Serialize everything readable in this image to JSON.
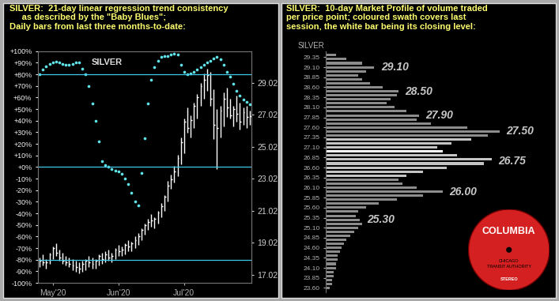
{
  "chart_data": [
    {
      "type": "combo",
      "title": "SILVER:  21-day linear regression trend consistency\n     as described by the \"Baby Blues\";\nDaily bars from last three months-to-date:",
      "annotation": "SILVER",
      "categories": [
        null,
        null,
        null,
        null,
        "May'20",
        null,
        null,
        null,
        null,
        null,
        null,
        null,
        null,
        null,
        null,
        null,
        null,
        null,
        null,
        null,
        null,
        null,
        null,
        null,
        "Jun'20",
        null,
        null,
        null,
        null,
        null,
        null,
        null,
        null,
        null,
        null,
        null,
        null,
        null,
        null,
        null,
        null,
        null,
        null,
        null,
        "Jul'20",
        null,
        null,
        null,
        null,
        null,
        null,
        null,
        null,
        null,
        null,
        null,
        null,
        null,
        null,
        null,
        null,
        null,
        null,
        null,
        null
      ],
      "ylim": [
        -100,
        100
      ],
      "yticks": [
        {
          "value": 100,
          "label": "+100%"
        },
        {
          "value": 90,
          "label": "+90%"
        },
        {
          "value": 80,
          "label": "+80%"
        },
        {
          "value": 70,
          "label": "+70%"
        },
        {
          "value": 60,
          "label": "+60%"
        },
        {
          "value": 50,
          "label": "+50%"
        },
        {
          "value": 40,
          "label": "+40%"
        },
        {
          "value": 30,
          "label": "+30%"
        },
        {
          "value": 20,
          "label": "+20%"
        },
        {
          "value": 10,
          "label": "+10%"
        },
        {
          "value": 0,
          "label": "+0%"
        },
        {
          "value": -10,
          "label": "-10%"
        },
        {
          "value": -20,
          "label": "-20%"
        },
        {
          "value": -30,
          "label": "-30%"
        },
        {
          "value": -40,
          "label": "-40%"
        },
        {
          "value": -50,
          "label": "-50%"
        },
        {
          "value": -60,
          "label": "-60%"
        },
        {
          "value": -70,
          "label": "-70%"
        },
        {
          "value": -80,
          "label": "-80%"
        },
        {
          "value": -90,
          "label": "-90%"
        },
        {
          "value": -100,
          "label": "-100%"
        }
      ],
      "y2lim": [
        16.5,
        31.0
      ],
      "y2ticks": [
        17.02,
        19.02,
        21.02,
        23.02,
        25.02,
        27.02,
        29.02
      ],
      "reference_lines": [
        80,
        0,
        -80
      ],
      "grid": false,
      "series": [
        {
          "type": "scatter",
          "color": "#5fe3e8",
          "values": [
            80,
            84,
            87,
            89,
            90,
            91,
            90,
            89,
            88,
            88,
            89,
            90,
            90,
            85,
            80,
            70,
            55,
            40,
            22,
            5,
            2,
            0,
            -2,
            -3,
            -4,
            -6,
            -10,
            -15,
            -22,
            -30,
            -33,
            -5,
            25,
            55,
            75,
            86,
            92,
            95,
            96,
            96,
            97,
            98,
            97,
            88,
            82,
            80,
            81,
            82,
            84,
            86,
            88,
            90,
            92,
            94,
            95,
            93,
            88,
            82,
            78,
            72,
            66,
            62,
            58,
            56,
            54
          ]
        },
        {
          "type": "ohlc",
          "axis": "y2",
          "color": "#ffffff",
          "high": [
            18.1,
            18.3,
            18.0,
            18.4,
            18.8,
            19.0,
            18.6,
            18.4,
            18.2,
            18.1,
            18.0,
            17.9,
            17.8,
            17.9,
            18.0,
            18.2,
            18.1,
            18.0,
            18.3,
            18.4,
            18.5,
            18.6,
            18.4,
            18.7,
            18.9,
            18.8,
            19.0,
            19.2,
            19.1,
            19.4,
            19.6,
            19.9,
            20.2,
            20.5,
            20.8,
            20.6,
            21.0,
            21.5,
            22.0,
            22.9,
            23.3,
            23.8,
            24.5,
            25.6,
            26.8,
            27.5,
            27.0,
            27.8,
            28.3,
            29.0,
            29.6,
            29.9,
            29.7,
            28.6,
            27.4,
            27.6,
            28.4,
            28.7,
            28.0,
            27.6,
            28.2,
            27.8,
            27.5,
            27.6,
            27.3
          ],
          "low": [
            17.5,
            17.6,
            17.4,
            17.7,
            18.0,
            18.2,
            17.9,
            17.7,
            17.6,
            17.5,
            17.3,
            17.2,
            17.1,
            17.2,
            17.3,
            17.5,
            17.4,
            17.4,
            17.6,
            17.7,
            17.8,
            17.9,
            17.8,
            18.0,
            18.2,
            18.2,
            18.3,
            18.5,
            18.5,
            18.7,
            18.9,
            19.2,
            19.5,
            19.8,
            20.0,
            19.9,
            20.2,
            20.6,
            21.0,
            21.6,
            22.4,
            22.8,
            23.2,
            23.9,
            24.6,
            25.9,
            25.6,
            26.2,
            26.8,
            27.6,
            28.0,
            28.5,
            27.6,
            25.5,
            23.6,
            25.6,
            26.3,
            26.9,
            26.8,
            26.3,
            26.6,
            26.1,
            26.4,
            26.2,
            26.4
          ],
          "close": [
            17.9,
            17.8,
            17.8,
            18.3,
            18.7,
            18.4,
            18.1,
            17.9,
            17.8,
            17.7,
            17.6,
            17.5,
            17.4,
            17.7,
            17.9,
            17.8,
            17.7,
            17.9,
            18.2,
            18.0,
            18.3,
            18.1,
            18.2,
            18.6,
            18.5,
            18.6,
            18.9,
            18.8,
            19.0,
            19.2,
            19.4,
            19.8,
            20.1,
            20.3,
            20.4,
            20.5,
            20.9,
            21.3,
            21.9,
            22.6,
            23.0,
            23.5,
            24.3,
            25.3,
            26.6,
            26.2,
            26.7,
            27.6,
            28.1,
            28.8,
            29.2,
            29.5,
            28.0,
            26.4,
            26.2,
            27.3,
            28.0,
            27.5,
            27.0,
            27.4,
            27.1,
            26.6,
            27.2,
            26.9,
            26.95
          ]
        }
      ]
    },
    {
      "type": "bar",
      "orientation": "horizontal",
      "title": "SILVER:  10-day Market Profile of volume traded\nper price point; coloured swath covers last\nsession, the white bar being its closing level:",
      "ylabel": "SILVER",
      "tick_labels": "y",
      "color": "#8c8c8c",
      "y": [
        23.6,
        23.7,
        23.8,
        23.9,
        24.0,
        24.1,
        24.2,
        24.3,
        24.4,
        24.5,
        24.6,
        24.7,
        24.8,
        24.9,
        25.0,
        25.1,
        25.2,
        25.3,
        25.4,
        25.5,
        25.6,
        25.7,
        25.8,
        25.9,
        26.0,
        26.1,
        26.2,
        26.3,
        26.4,
        26.5,
        26.6,
        26.7,
        26.8,
        26.9,
        27.0,
        27.1,
        27.2,
        27.3,
        27.4,
        27.5,
        27.6,
        27.7,
        27.8,
        27.9,
        28.0,
        28.1,
        28.2,
        28.3,
        28.4,
        28.5,
        28.6,
        28.7,
        28.8,
        28.9,
        29.0,
        29.1,
        29.2,
        29.3,
        29.4
      ],
      "values": [
        2,
        3,
        3,
        4,
        4,
        5,
        5,
        6,
        6,
        7,
        8,
        9,
        10,
        12,
        14,
        16,
        18,
        17,
        15,
        16,
        20,
        26,
        35,
        48,
        58,
        45,
        38,
        36,
        40,
        48,
        60,
        78,
        82,
        65,
        58,
        55,
        62,
        72,
        80,
        86,
        70,
        52,
        45,
        46,
        40,
        34,
        30,
        32,
        35,
        36,
        28,
        22,
        18,
        16,
        20,
        24,
        18,
        10,
        5
      ],
      "last_session": {
        "low": 26.4,
        "high": 27.3,
        "close": 27.0,
        "color": "#c4c4c4"
      },
      "ylim": [
        23.5,
        29.5
      ],
      "yticks": [
        {
          "value": 23.6,
          "label": "23.60"
        },
        {
          "value": 23.85,
          "label": "23.85"
        },
        {
          "value": 24.1,
          "label": "24.10"
        },
        {
          "value": 24.35,
          "label": "24.35"
        },
        {
          "value": 24.6,
          "label": "24.60"
        },
        {
          "value": 24.85,
          "label": "24.85"
        },
        {
          "value": 25.1,
          "label": "25.10"
        },
        {
          "value": 25.35,
          "label": "25.35"
        },
        {
          "value": 25.6,
          "label": "25.60"
        },
        {
          "value": 25.85,
          "label": "25.85"
        },
        {
          "value": 26.1,
          "label": "26.10"
        },
        {
          "value": 26.35,
          "label": "26.35"
        },
        {
          "value": 26.6,
          "label": "26.60"
        },
        {
          "value": 26.85,
          "label": "26.85"
        },
        {
          "value": 27.1,
          "label": "27.10"
        },
        {
          "value": 27.35,
          "label": "27.35"
        },
        {
          "value": 27.6,
          "label": "27.60"
        },
        {
          "value": 27.85,
          "label": "27.85"
        },
        {
          "value": 28.1,
          "label": "28.10"
        },
        {
          "value": 28.35,
          "label": "28.35"
        },
        {
          "value": 28.6,
          "label": "28.60"
        },
        {
          "value": 28.85,
          "label": "28.85"
        },
        {
          "value": 29.1,
          "label": "29.10"
        },
        {
          "value": 29.35,
          "label": "29.35"
        }
      ],
      "annotations": [
        {
          "value": 29.1,
          "label": "29.10"
        },
        {
          "value": 28.5,
          "label": "28.50"
        },
        {
          "value": 27.9,
          "label": "27.90"
        },
        {
          "value": 27.5,
          "label": "27.50"
        },
        {
          "value": 26.75,
          "label": "26.75"
        },
        {
          "value": 26.0,
          "label": "26.00"
        },
        {
          "value": 25.3,
          "label": "25.30"
        }
      ],
      "record": {
        "label": "COLUMBIA",
        "texts": [
          "CHICAGO",
          "TRANSIT AUTHORITY",
          "STEREO"
        ]
      }
    }
  ]
}
